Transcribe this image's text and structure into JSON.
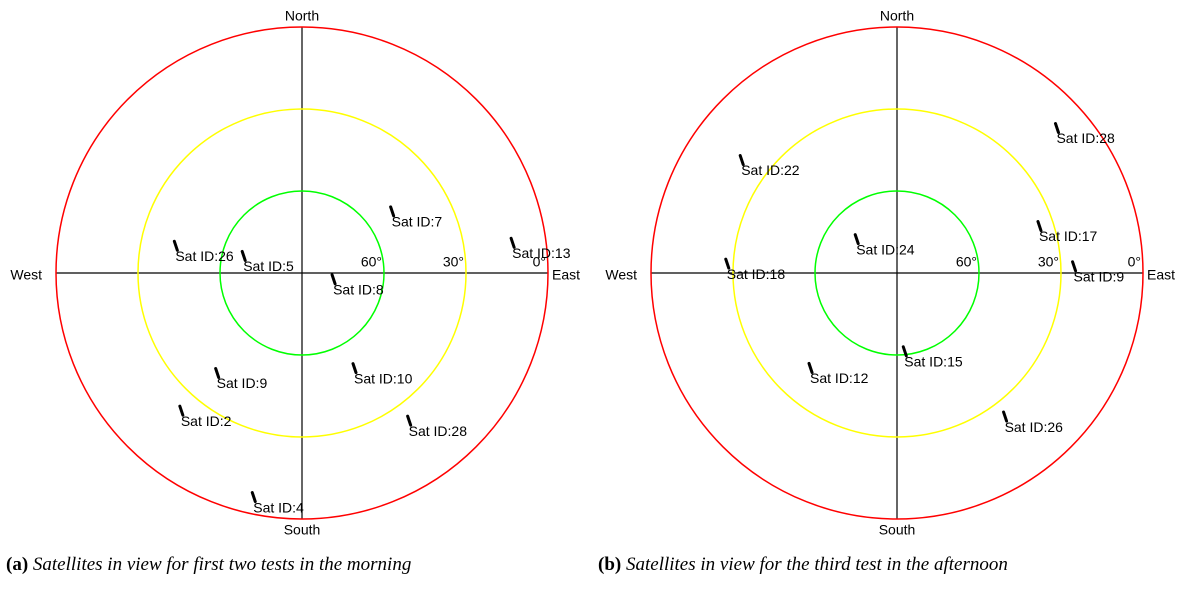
{
  "chart_data": [
    {
      "type": "polar",
      "direction_labels": [
        "North",
        "East",
        "South",
        "West"
      ],
      "ylim": [
        0,
        90
      ],
      "yticks": [
        {
          "value": 0,
          "label": "0°"
        },
        {
          "value": 30,
          "label": "30°"
        },
        {
          "value": 60,
          "label": "60°"
        }
      ],
      "ring_colors": [
        "#ff0000",
        "#ffff00",
        "#00ff00"
      ],
      "points": [
        {
          "label": "Sat ID:26",
          "azimuth": 282,
          "elevation": 43
        },
        {
          "label": "Sat ID:5",
          "azimuth": 286,
          "elevation": 68
        },
        {
          "label": "Sat ID:7",
          "azimuth": 56,
          "elevation": 50
        },
        {
          "label": "Sat ID:13",
          "azimuth": 82,
          "elevation": 12
        },
        {
          "label": "Sat ID:8",
          "azimuth": 102,
          "elevation": 78
        },
        {
          "label": "Sat ID:10",
          "azimuth": 151,
          "elevation": 50
        },
        {
          "label": "Sat ID:9",
          "azimuth": 220,
          "elevation": 42
        },
        {
          "label": "Sat ID:2",
          "azimuth": 221,
          "elevation": 23
        },
        {
          "label": "Sat ID:28",
          "azimuth": 144,
          "elevation": 23
        },
        {
          "label": "Sat ID:4",
          "azimuth": 192,
          "elevation": 6
        }
      ],
      "caption": {
        "label": "(a)",
        "text": "Satellites in view for first two tests in the morning"
      }
    },
    {
      "type": "polar",
      "direction_labels": [
        "North",
        "East",
        "South",
        "West"
      ],
      "ylim": [
        0,
        90
      ],
      "yticks": [
        {
          "value": 0,
          "label": "0°"
        },
        {
          "value": 30,
          "label": "30°"
        },
        {
          "value": 60,
          "label": "60°"
        }
      ],
      "ring_colors": [
        "#ff0000",
        "#ffff00",
        "#00ff00"
      ],
      "points": [
        {
          "label": "Sat ID:28",
          "azimuth": 48,
          "elevation": 11
        },
        {
          "label": "Sat ID:22",
          "azimuth": 306,
          "elevation": 20
        },
        {
          "label": "Sat ID:17",
          "azimuth": 72,
          "elevation": 35
        },
        {
          "label": "Sat ID:24",
          "azimuth": 310,
          "elevation": 71
        },
        {
          "label": "Sat ID:18",
          "azimuth": 273,
          "elevation": 28
        },
        {
          "label": "Sat ID:9",
          "azimuth": 88,
          "elevation": 25
        },
        {
          "label": "Sat ID:15",
          "azimuth": 174,
          "elevation": 61
        },
        {
          "label": "Sat ID:12",
          "azimuth": 222,
          "elevation": 43
        },
        {
          "label": "Sat ID:26",
          "azimuth": 143,
          "elevation": 24
        }
      ],
      "caption": {
        "label": "(b)",
        "text": "Satellites in view for the third test in the afternoon"
      }
    }
  ]
}
